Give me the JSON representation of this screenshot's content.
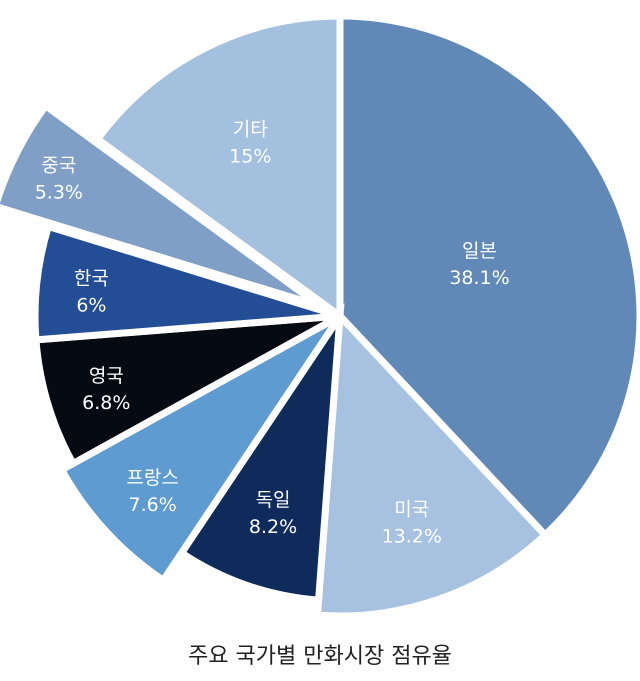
{
  "chart_data": {
    "type": "pie",
    "title": "주요 국가별 만화시장 점유율",
    "slices": [
      {
        "label": "일본",
        "value": 38.1,
        "value_label": "38.1%",
        "color": "#6089B8"
      },
      {
        "label": "미국",
        "value": 13.2,
        "value_label": "13.2%",
        "color": "#A7C2E0"
      },
      {
        "label": "독일",
        "value": 8.2,
        "value_label": "8.2%",
        "color": "#0E2B5C"
      },
      {
        "label": "프랑스",
        "value": 7.6,
        "value_label": "7.6%",
        "color": "#5E9BD0"
      },
      {
        "label": "영국",
        "value": 6.8,
        "value_label": "6.8%",
        "color": "#060A13"
      },
      {
        "label": "한국",
        "value": 6,
        "value_label": "6%",
        "color": "#234E95"
      },
      {
        "label": "중국",
        "value": 5.3,
        "value_label": "5.3%",
        "color": "#7F9FC6"
      },
      {
        "label": "기타",
        "value": 15,
        "value_label": "15%",
        "color": "#A3C1DF"
      }
    ]
  }
}
